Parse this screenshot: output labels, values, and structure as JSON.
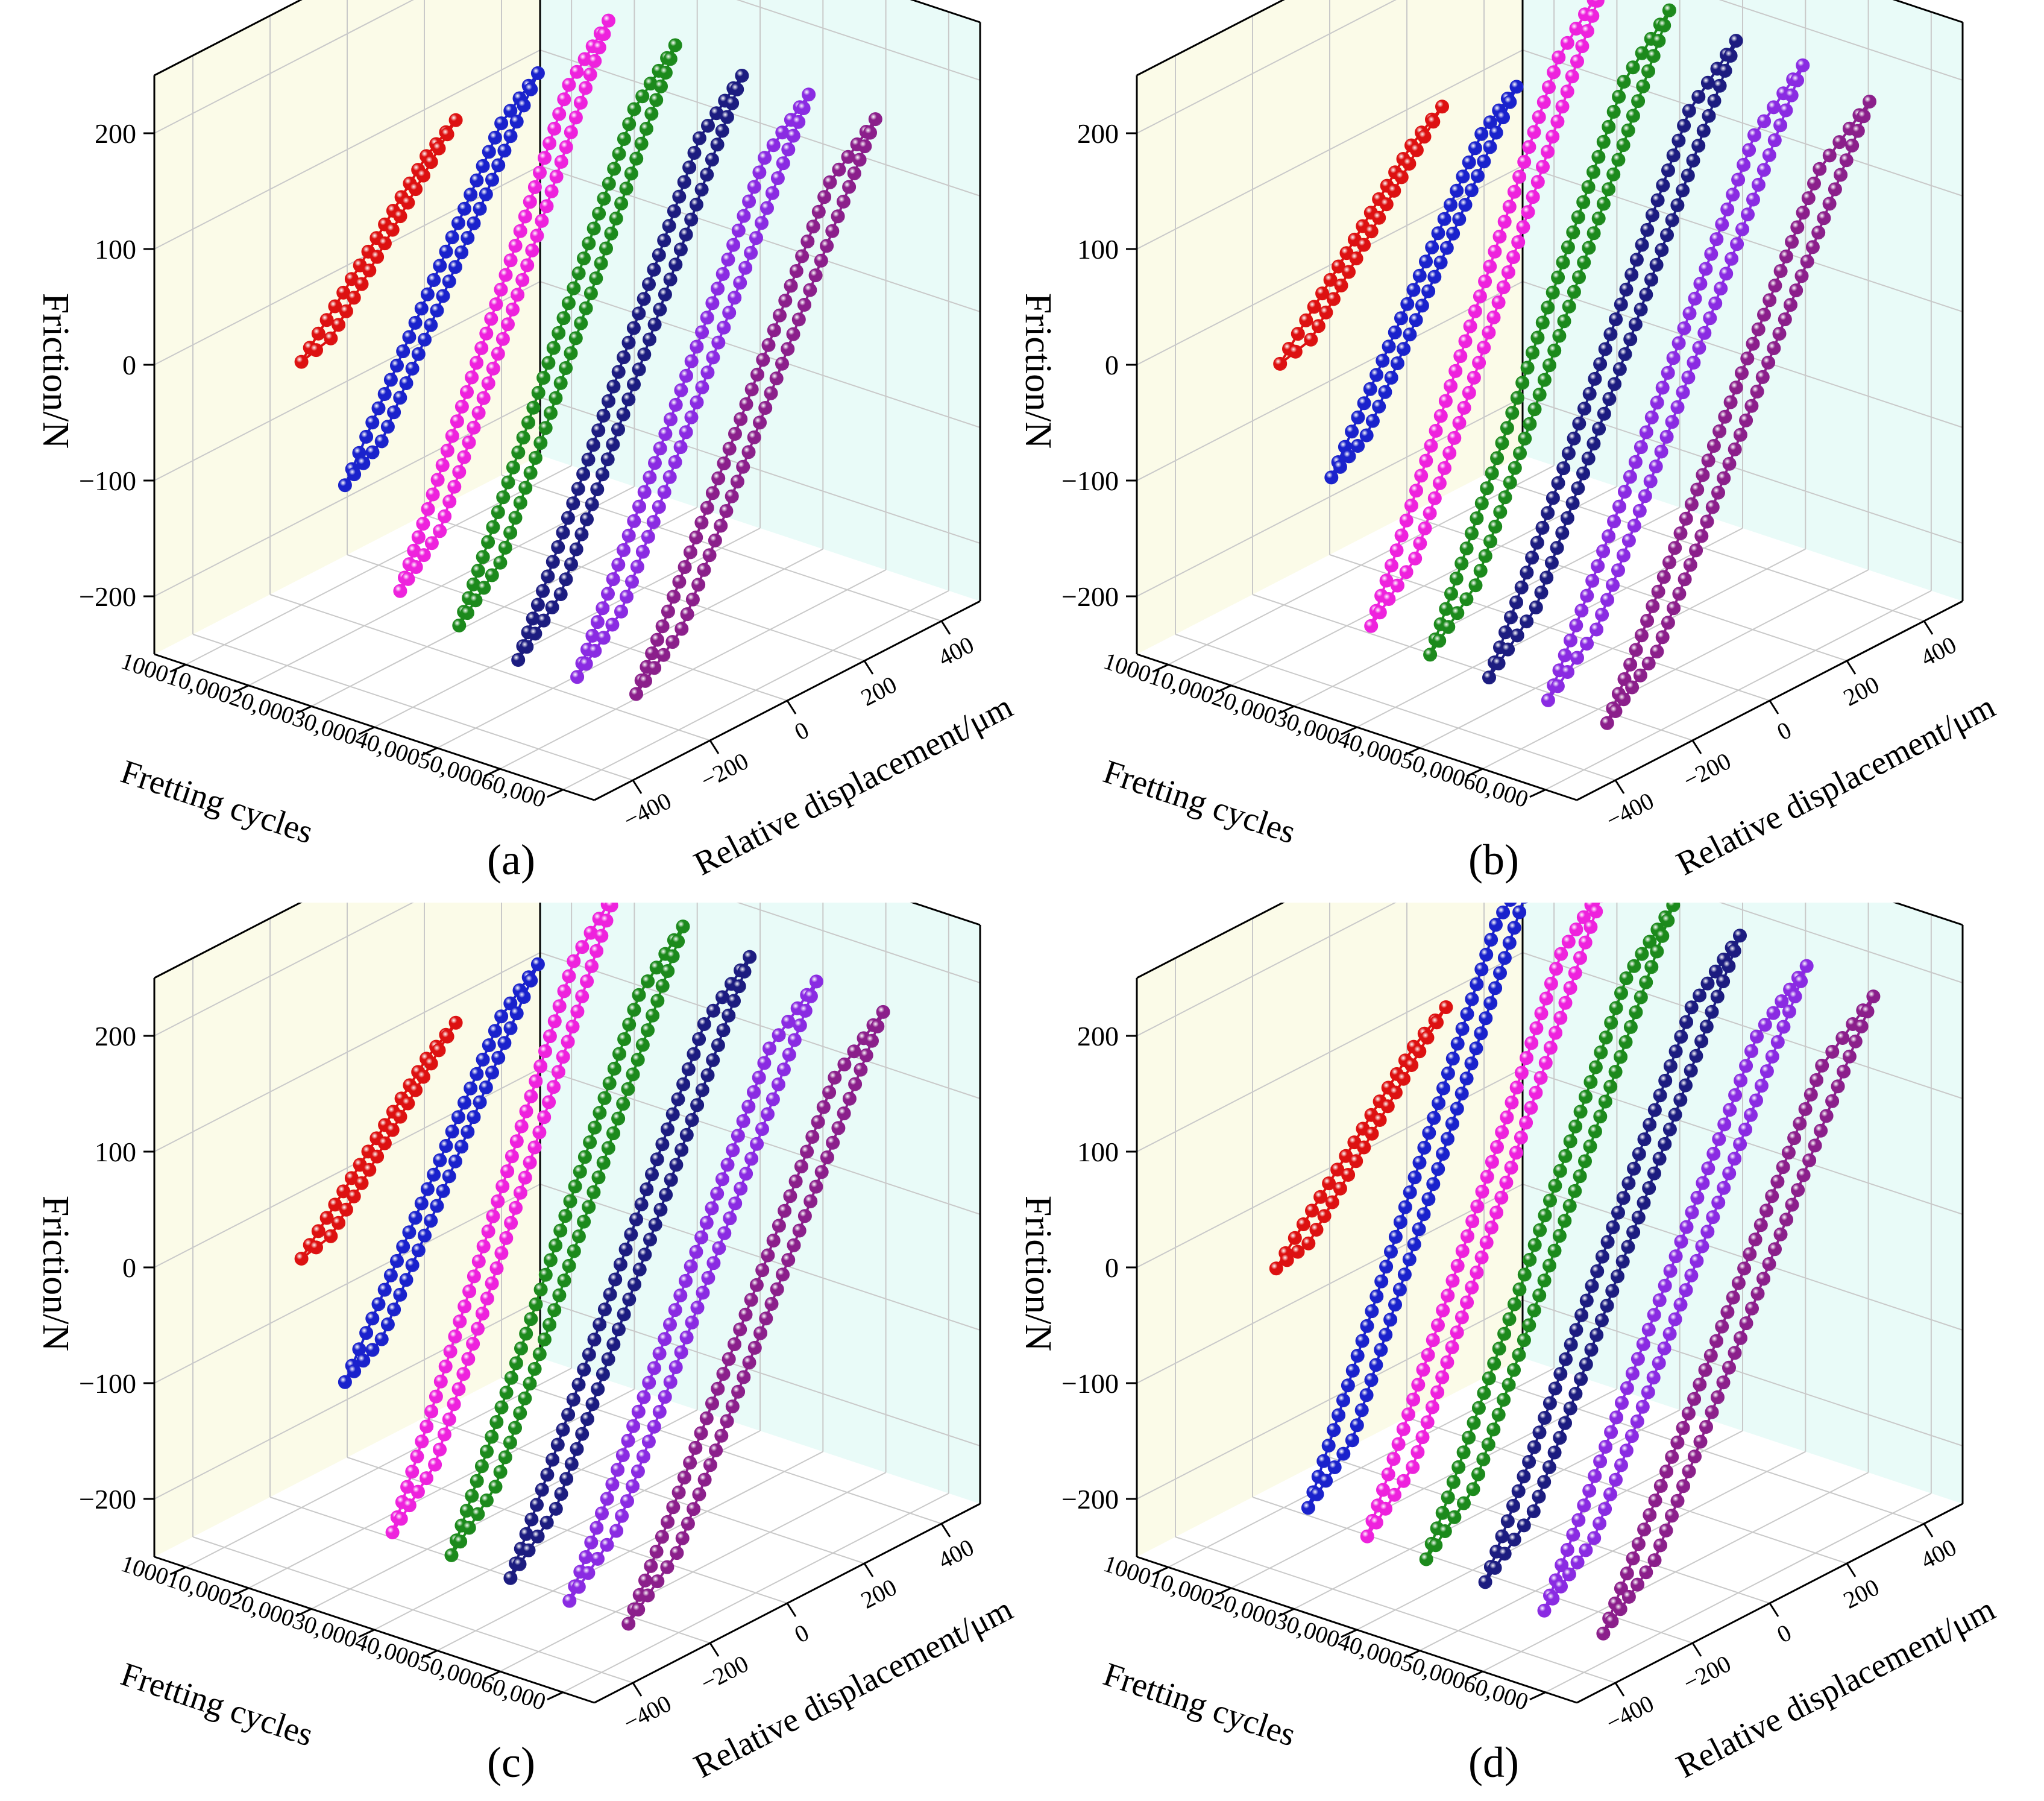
{
  "figure": {
    "panels": [
      "(a)",
      "(b)",
      "(c)",
      "(d)"
    ]
  },
  "colors": {
    "wall_left": "#fbfbe8",
    "wall_right": "#e9fbf8",
    "grid": "#c9c9c9",
    "axis": "#000000",
    "series": [
      "#dd1111",
      "#1a22cc",
      "#ee22dd",
      "#1c8a1c",
      "#1c1c80",
      "#8a2be2",
      "#8b1f8b"
    ]
  },
  "chart_data": [
    {
      "type": "scatter",
      "panel_label": "(a)",
      "title": "",
      "xlabel": "Fretting cycles",
      "ylabel": "Relative displacement/μm",
      "zlabel": "Friction/N",
      "x_ticks": [
        "1000",
        "10,000",
        "20,000",
        "30,000",
        "40,000",
        "50,000",
        "60,000"
      ],
      "y_ticks": [
        "-400",
        "-200",
        "0",
        "200",
        "400"
      ],
      "z_ticks": [
        "-200",
        "-100",
        "0",
        "100",
        "200"
      ],
      "x_categories": [
        1000,
        10000,
        20000,
        30000,
        40000,
        50000,
        60000
      ],
      "ylim": [
        -500,
        500
      ],
      "zlim": [
        -250,
        250
      ],
      "series": [
        {
          "name": "1000",
          "x": 1000,
          "amplitude": 200,
          "friction_max": 100,
          "friction_min": -40
        },
        {
          "name": "10,000",
          "x": 10000,
          "amplitude": 250,
          "friction_max": 150,
          "friction_min": -120
        },
        {
          "name": "20,000",
          "x": 20000,
          "amplitude": 270,
          "friction_max": 210,
          "friction_min": -190
        },
        {
          "name": "30,000",
          "x": 30000,
          "amplitude": 280,
          "friction_max": 205,
          "friction_min": -200
        },
        {
          "name": "40,000",
          "x": 40000,
          "amplitude": 290,
          "friction_max": 195,
          "friction_min": -210
        },
        {
          "name": "50,000",
          "x": 50000,
          "amplitude": 300,
          "friction_max": 195,
          "friction_min": -205
        },
        {
          "name": "60,000",
          "x": 60000,
          "amplitude": 310,
          "friction_max": 190,
          "friction_min": -200
        }
      ]
    },
    {
      "type": "scatter",
      "panel_label": "(b)",
      "title": "",
      "xlabel": "Fretting cycles",
      "ylabel": "Relative displacement/μm",
      "zlabel": "Friction/N",
      "x_ticks": [
        "1000",
        "10,000",
        "20,000",
        "30,000",
        "40,000",
        "50,000",
        "60,000"
      ],
      "y_ticks": [
        "-400",
        "-200",
        "0",
        "200",
        "400"
      ],
      "z_ticks": [
        "-200",
        "-100",
        "0",
        "100",
        "200"
      ],
      "x_categories": [
        1000,
        10000,
        20000,
        30000,
        40000,
        50000,
        60000
      ],
      "ylim": [
        -500,
        500
      ],
      "zlim": [
        -250,
        250
      ],
      "series": [
        {
          "name": "1000",
          "x": 1000,
          "amplitude": 210,
          "friction_max": 110,
          "friction_min": -40
        },
        {
          "name": "10,000",
          "x": 10000,
          "amplitude": 240,
          "friction_max": 140,
          "friction_min": -115
        },
        {
          "name": "20,000",
          "x": 20000,
          "amplitude": 300,
          "friction_max": 235,
          "friction_min": -215
        },
        {
          "name": "30,000",
          "x": 30000,
          "amplitude": 310,
          "friction_max": 230,
          "friction_min": -220
        },
        {
          "name": "40,000",
          "x": 40000,
          "amplitude": 320,
          "friction_max": 220,
          "friction_min": -220
        },
        {
          "name": "50,000",
          "x": 50000,
          "amplitude": 330,
          "friction_max": 215,
          "friction_min": -220
        },
        {
          "name": "60,000",
          "x": 60000,
          "amplitude": 340,
          "friction_max": 200,
          "friction_min": -220
        }
      ]
    },
    {
      "type": "scatter",
      "panel_label": "(c)",
      "title": "",
      "xlabel": "Fretting cycles",
      "ylabel": "Relative displacement/μm",
      "zlabel": "Friction/N",
      "x_ticks": [
        "1000",
        "10,000",
        "20,000",
        "30,000",
        "40,000",
        "50,000",
        "60,000"
      ],
      "y_ticks": [
        "-400",
        "-200",
        "0",
        "200",
        "400"
      ],
      "z_ticks": [
        "-200",
        "-100",
        "0",
        "100",
        "200"
      ],
      "x_categories": [
        1000,
        10000,
        20000,
        30000,
        40000,
        50000,
        60000
      ],
      "ylim": [
        -500,
        500
      ],
      "zlim": [
        -250,
        250
      ],
      "series": [
        {
          "name": "1000",
          "x": 1000,
          "amplitude": 200,
          "friction_max": 100,
          "friction_min": -35
        },
        {
          "name": "10,000",
          "x": 10000,
          "amplitude": 250,
          "friction_max": 160,
          "friction_min": -115
        },
        {
          "name": "20,000",
          "x": 20000,
          "amplitude": 290,
          "friction_max": 235,
          "friction_min": -220
        },
        {
          "name": "30,000",
          "x": 30000,
          "amplitude": 300,
          "friction_max": 220,
          "friction_min": -220
        },
        {
          "name": "40,000",
          "x": 40000,
          "amplitude": 310,
          "friction_max": 210,
          "friction_min": -220
        },
        {
          "name": "50,000",
          "x": 50000,
          "amplitude": 320,
          "friction_max": 205,
          "friction_min": -220
        },
        {
          "name": "60,000",
          "x": 60000,
          "amplitude": 330,
          "friction_max": 195,
          "friction_min": -220
        }
      ]
    },
    {
      "type": "scatter",
      "panel_label": "(d)",
      "title": "",
      "xlabel": "Fretting cycles",
      "ylabel": "Relative displacement/μm",
      "zlabel": "Friction/N",
      "x_ticks": [
        "1000",
        "10,000",
        "20,000",
        "30,000",
        "40,000",
        "50,000",
        "60,000"
      ],
      "y_ticks": [
        "-400",
        "-200",
        "0",
        "200",
        "400"
      ],
      "z_ticks": [
        "-200",
        "-100",
        "0",
        "100",
        "200"
      ],
      "x_categories": [
        1000,
        10000,
        20000,
        30000,
        40000,
        50000,
        60000
      ],
      "ylim": [
        -500,
        500
      ],
      "zlim": [
        -250,
        250
      ],
      "series": [
        {
          "name": "1000",
          "x": 1000,
          "amplitude": 220,
          "friction_max": 110,
          "friction_min": -40
        },
        {
          "name": "10,000",
          "x": 10000,
          "amplitude": 300,
          "friction_max": 250,
          "friction_min": -215
        },
        {
          "name": "20,000",
          "x": 20000,
          "amplitude": 310,
          "friction_max": 240,
          "friction_min": -220
        },
        {
          "name": "30,000",
          "x": 30000,
          "amplitude": 320,
          "friction_max": 235,
          "friction_min": -220
        },
        {
          "name": "40,000",
          "x": 40000,
          "amplitude": 330,
          "friction_max": 225,
          "friction_min": -220
        },
        {
          "name": "50,000",
          "x": 50000,
          "amplitude": 340,
          "friction_max": 215,
          "friction_min": -225
        },
        {
          "name": "60,000",
          "x": 60000,
          "amplitude": 350,
          "friction_max": 205,
          "friction_min": -225
        }
      ]
    }
  ]
}
